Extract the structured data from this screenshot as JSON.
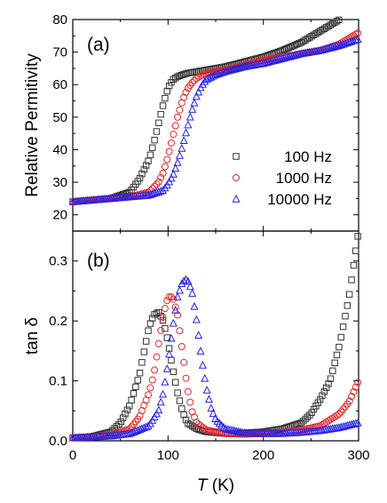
{
  "chart_data": [
    {
      "id": "a",
      "type": "scatter",
      "panel_label": "(a)",
      "ylabel": "Relative Permitivity",
      "xlim": [
        0,
        300
      ],
      "ylim": [
        15,
        80
      ],
      "y_ticks": [
        20,
        30,
        40,
        50,
        60,
        70,
        80
      ],
      "legend_position": "right-middle",
      "series": [
        {
          "name": "100 Hz",
          "color": "#333333",
          "marker": "square",
          "x": [
            0,
            20,
            40,
            60,
            70,
            80,
            85,
            90,
            95,
            100,
            105,
            110,
            115,
            120,
            140,
            160,
            180,
            200,
            220,
            240,
            260,
            280
          ],
          "y": [
            24,
            24.5,
            25,
            27,
            31,
            37,
            42,
            48,
            54,
            59,
            61.5,
            62.5,
            63,
            63.5,
            64.5,
            65.5,
            67,
            68.5,
            70.5,
            73,
            76.5,
            80
          ]
        },
        {
          "name": "1000 Hz",
          "color": "#e8262a",
          "marker": "circle",
          "x": [
            0,
            20,
            40,
            60,
            80,
            90,
            95,
            100,
            105,
            110,
            115,
            120,
            125,
            130,
            140,
            160,
            180,
            200,
            220,
            240,
            260,
            280,
            300
          ],
          "y": [
            24,
            24.5,
            25,
            25.5,
            27,
            30,
            33,
            38,
            44,
            50,
            55,
            58.5,
            60.5,
            62,
            63.5,
            64.5,
            66,
            67.5,
            68.5,
            69.5,
            70.5,
            72.5,
            76
          ]
        },
        {
          "name": "10000 Hz",
          "color": "#2222ee",
          "marker": "triangle",
          "x": [
            0,
            20,
            40,
            60,
            80,
            95,
            100,
            105,
            110,
            115,
            120,
            125,
            130,
            135,
            140,
            150,
            160,
            180,
            200,
            220,
            240,
            260,
            280,
            300
          ],
          "y": [
            24,
            24.5,
            25,
            25.5,
            26,
            27.5,
            29.5,
            32,
            36,
            41,
            46.5,
            52,
            56.5,
            59.5,
            61.5,
            63,
            64,
            65.5,
            66.5,
            68,
            69.5,
            70.5,
            72,
            74
          ]
        }
      ]
    },
    {
      "id": "b",
      "type": "scatter",
      "panel_label": "(b)",
      "ylabel": "tan δ",
      "xlabel": "T (K)",
      "xlabel_var": "T",
      "xlabel_unit": " (K)",
      "xlim": [
        0,
        300
      ],
      "ylim": [
        0,
        0.35
      ],
      "y_ticks": [
        "0.0",
        "0.1",
        "0.2",
        "0.3"
      ],
      "x_ticks": [
        0,
        100,
        200,
        300
      ],
      "series": [
        {
          "name": "100 Hz",
          "color": "#333333",
          "marker": "square",
          "x": [
            0,
            20,
            40,
            50,
            60,
            70,
            75,
            80,
            85,
            90,
            95,
            100,
            105,
            110,
            115,
            120,
            130,
            140,
            160,
            180,
            200,
            220,
            240,
            250,
            260,
            270,
            280,
            290,
            300
          ],
          "y": [
            0.005,
            0.007,
            0.015,
            0.03,
            0.06,
            0.11,
            0.15,
            0.19,
            0.21,
            0.215,
            0.2,
            0.165,
            0.12,
            0.08,
            0.05,
            0.03,
            0.02,
            0.015,
            0.012,
            0.013,
            0.015,
            0.02,
            0.03,
            0.045,
            0.07,
            0.1,
            0.16,
            0.24,
            0.35
          ]
        },
        {
          "name": "1000 Hz",
          "color": "#e8262a",
          "marker": "circle",
          "x": [
            0,
            20,
            40,
            60,
            70,
            80,
            85,
            90,
            95,
            100,
            105,
            110,
            115,
            120,
            125,
            130,
            140,
            160,
            180,
            200,
            220,
            240,
            260,
            280,
            290,
            300
          ],
          "y": [
            0.005,
            0.006,
            0.01,
            0.02,
            0.04,
            0.08,
            0.11,
            0.16,
            0.21,
            0.24,
            0.24,
            0.21,
            0.15,
            0.09,
            0.05,
            0.03,
            0.018,
            0.012,
            0.011,
            0.012,
            0.014,
            0.018,
            0.025,
            0.045,
            0.065,
            0.1
          ]
        },
        {
          "name": "10000 Hz",
          "color": "#2222ee",
          "marker": "triangle",
          "x": [
            0,
            20,
            40,
            60,
            80,
            90,
            95,
            100,
            105,
            110,
            115,
            120,
            125,
            130,
            135,
            140,
            145,
            150,
            160,
            180,
            200,
            220,
            240,
            260,
            280,
            300
          ],
          "y": [
            0.005,
            0.006,
            0.008,
            0.012,
            0.025,
            0.05,
            0.08,
            0.13,
            0.19,
            0.24,
            0.265,
            0.27,
            0.25,
            0.2,
            0.14,
            0.09,
            0.055,
            0.035,
            0.02,
            0.013,
            0.012,
            0.012,
            0.014,
            0.017,
            0.022,
            0.03
          ]
        }
      ]
    }
  ]
}
